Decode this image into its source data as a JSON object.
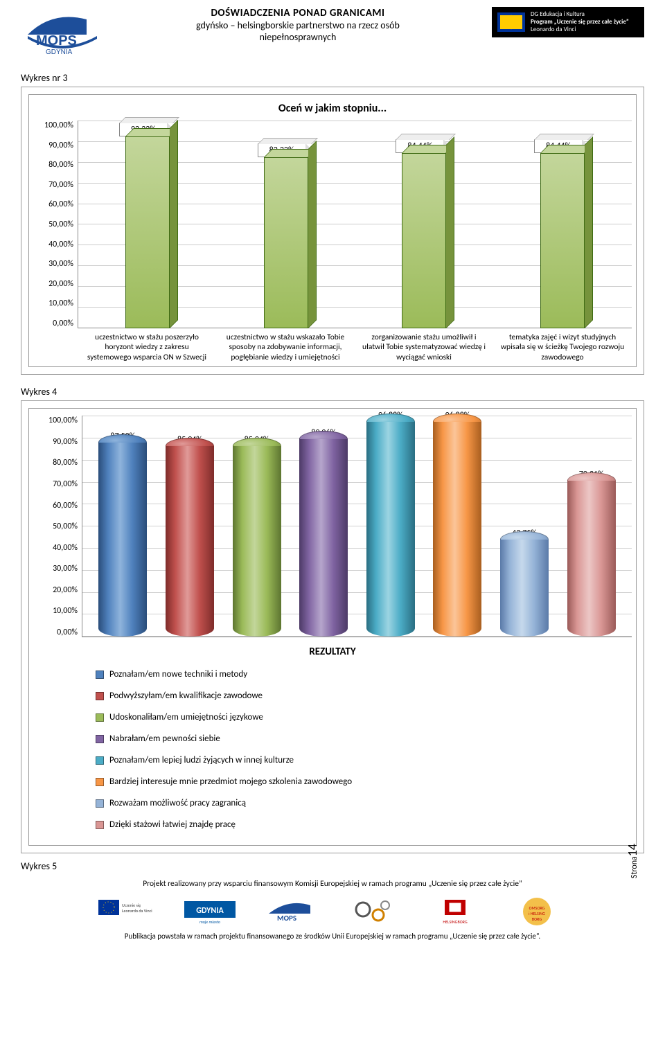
{
  "header": {
    "logo_left_text": "GDYNIA",
    "logo_left_brand": "MOPS",
    "title_l1": "DOŚWIADCZENIA PONAD GRANICAMI",
    "title_l2": "gdyńsko – helsingborskie partnerstwo na rzecz osób",
    "title_l3": "niepełnosprawnych",
    "eu_line1": "DG Edukacja i Kultura",
    "eu_line2": "Program „Uczenie się przez całe życie”",
    "eu_line3": "Leonardo da Vinci"
  },
  "labels": {
    "wykres3": "Wykres nr 3",
    "wykres4": "Wykres 4",
    "wykres5": "Wykres 5"
  },
  "chart1": {
    "title": "Oceń w jakim stopniu...",
    "type": "bar-3d",
    "ylim": [
      0,
      100
    ],
    "ytick_step": 10,
    "grid_color": "#cccccc",
    "axis_color": "#888888",
    "bar_fill": "#9bbb59",
    "bar_fill_light": "#c3d69b",
    "bar_fill_dark": "#76933c",
    "bar_border": "#3e6a12",
    "label_fontsize": 12,
    "yticks": [
      "100,00%",
      "90,00%",
      "80,00%",
      "70,00%",
      "60,00%",
      "50,00%",
      "40,00%",
      "30,00%",
      "20,00%",
      "10,00%",
      "0,00%"
    ],
    "bars": [
      {
        "value": 92.22,
        "label": "92,22%",
        "xlabel": "uczestnictwo w stażu poszerzyło horyzont wiedzy z zakresu systemowego wsparcia ON w Szwecji"
      },
      {
        "value": 82.22,
        "label": "82,22%",
        "xlabel": "uczestnictwo w stażu wskazało Tobie sposoby na zdobywanie informacji, pogłębianie wiedzy i umiejętności"
      },
      {
        "value": 84.44,
        "label": "84,44%",
        "xlabel": "zorganizowanie stażu umożliwił i ułatwił Tobie systematyzować wiedzę i wyciągać wnioski"
      },
      {
        "value": 84.44,
        "label": "84,44%",
        "xlabel": "tematyka zajęć i wizyt studyjnych wpisała się w ścieżkę Twojego rozwoju zawodowego"
      }
    ]
  },
  "chart2": {
    "type": "cylinder-bar",
    "ylim": [
      0,
      100
    ],
    "ytick_step": 10,
    "grid_color": "#d0d0d0",
    "yticks": [
      "100,00%",
      "90,00%",
      "80,00%",
      "70,00%",
      "60,00%",
      "50,00%",
      "40,00%",
      "30,00%",
      "20,00%",
      "10,00%",
      "0,00%"
    ],
    "bars": [
      {
        "value": 87.5,
        "label": "87,50%",
        "body": "#4f81bd",
        "cap": "#2a4d7a",
        "shine": "#8fb4dc"
      },
      {
        "value": 85.94,
        "label": "85,94%",
        "body": "#c0504d",
        "cap": "#7e2c2a",
        "shine": "#e09a98"
      },
      {
        "value": 85.94,
        "label": "85,94%",
        "body": "#9bbb59",
        "cap": "#5d7530",
        "shine": "#c3d69b"
      },
      {
        "value": 89.06,
        "label": "89,06%",
        "body": "#8064a2",
        "cap": "#4c3a66",
        "shine": "#b6a6cc"
      },
      {
        "value": 96.88,
        "label": "96,88%",
        "body": "#4bacc6",
        "cap": "#2a6e82",
        "shine": "#9cd4e2"
      },
      {
        "value": 96.88,
        "label": "96,88%",
        "body": "#f79646",
        "cap": "#a85e1f",
        "shine": "#fbc599"
      },
      {
        "value": 43.75,
        "label": "43,75%",
        "body": "#95b3d7",
        "cap": "#5a7aa8",
        "shine": "#c6d9ec"
      },
      {
        "value": 70.31,
        "label": "70,31%",
        "body": "#d99694",
        "cap": "#9a5a58",
        "shine": "#ecc7c6"
      }
    ],
    "legend_title": "REZULTATY",
    "legend": [
      {
        "color": "#4f81bd",
        "text": "Poznałam/em nowe techniki i metody"
      },
      {
        "color": "#c0504d",
        "text": "Podwyższyłam/em kwalifikacje zawodowe"
      },
      {
        "color": "#9bbb59",
        "text": "Udoskonaliłam/em umiejętności językowe"
      },
      {
        "color": "#8064a2",
        "text": "Nabrałam/em pewności siebie"
      },
      {
        "color": "#4bacc6",
        "text": "Poznałam/em lepiej ludzi żyjących w innej kulturze"
      },
      {
        "color": "#f79646",
        "text": "Bardziej interesuje mnie przedmiot mojego szkolenia zawodowego"
      },
      {
        "color": "#95b3d7",
        "text": "Rozważam możliwość pracy zagranicą"
      },
      {
        "color": "#d99694",
        "text": "Dzięki stażowi łatwiej znajdę pracę"
      }
    ]
  },
  "footer": {
    "page_label": "Strona",
    "page_number": "14",
    "line": "Projekt realizowany przy wsparciu finansowym Komisji Europejskiej w ramach programu „Uczenie się przez całe życie”",
    "pub": "Publikacja powstała w ramach projektu finansowanego ze środków Unii Europejskiej w ramach programu „Uczenie się przez całe życie”.",
    "logos": [
      "EU / Leonardo da Vinci",
      "GDYNIA",
      "MOPS",
      "gears",
      "HELSINGBORG",
      "OMSORG HELSINGBORG"
    ]
  }
}
